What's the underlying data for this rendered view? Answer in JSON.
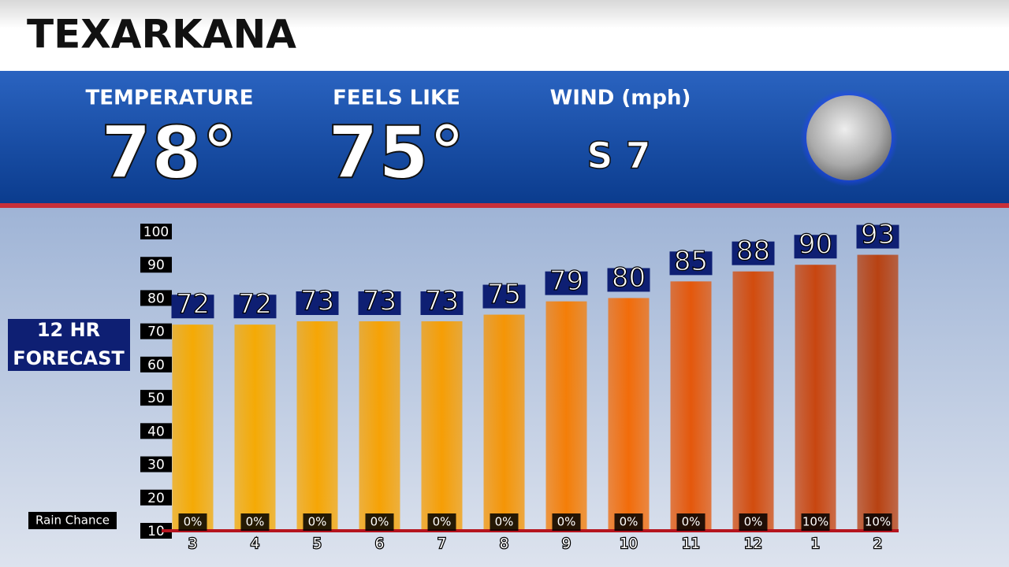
{
  "header": {
    "title": "TEXARKANA"
  },
  "current": {
    "temperature": {
      "label": "TEMPERATURE",
      "value": "78°"
    },
    "feels_like": {
      "label": "FEELS LIKE",
      "value": "75°"
    },
    "wind": {
      "label": "WIND (mph)",
      "value": "S 7"
    }
  },
  "chart_data": {
    "type": "bar",
    "title": "12 HR FORECAST",
    "categories": [
      "3",
      "4",
      "5",
      "6",
      "7",
      "8",
      "9",
      "10",
      "11",
      "12",
      "1",
      "2"
    ],
    "values": [
      72,
      72,
      73,
      73,
      73,
      75,
      79,
      80,
      85,
      88,
      90,
      93
    ],
    "colors": [
      "#f5aa05",
      "#f5aa05",
      "#f6a605",
      "#f6a205",
      "#f69e05",
      "#f59506",
      "#f47e08",
      "#f26c0a",
      "#e4580c",
      "#d24c0e",
      "#c84610",
      "#b84212"
    ],
    "ylim": [
      10,
      100
    ],
    "yticks": [
      10,
      20,
      30,
      40,
      50,
      60,
      70,
      80,
      90,
      100
    ],
    "rain_chance": {
      "name": "Rain Chance",
      "values": [
        0,
        0,
        0,
        0,
        0,
        0,
        0,
        0,
        0,
        0,
        10,
        10
      ],
      "value_labels": [
        "0%",
        "0%",
        "0%",
        "0%",
        "0%",
        "0%",
        "0%",
        "0%",
        "0%",
        "0%",
        "10%",
        "10%"
      ]
    }
  }
}
